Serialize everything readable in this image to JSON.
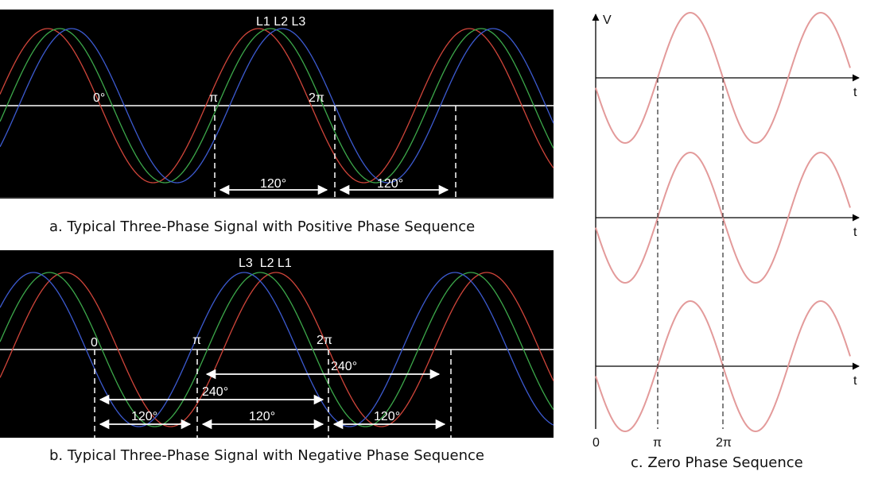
{
  "panel_a": {
    "phase_labels": "L1 L2 L3",
    "angle_labels": [
      "0°",
      "π",
      "2π"
    ],
    "gap_labels": [
      "120°",
      "120°"
    ],
    "caption": "a. Typical Three-Phase Signal with Positive Phase Sequence"
  },
  "panel_b": {
    "phase_labels": "L3  L2 L1",
    "angle_labels": [
      "0",
      "π",
      "2π"
    ],
    "gap_labels": [
      "240°",
      "240°",
      "120°",
      "120°",
      "120°"
    ],
    "caption": "b. Typical Three-Phase Signal with Negative Phase Sequence"
  },
  "panel_c": {
    "y_axis_label": "V",
    "time_labels": [
      "t",
      "t",
      "t"
    ],
    "tick_labels": [
      "0",
      "π",
      "2π"
    ],
    "caption": "c. Zero Phase Sequence"
  },
  "colors": {
    "background": "#000000",
    "L1": "#d0453a",
    "L2": "#3ca84a",
    "L3": "#3c5ad0",
    "zero_sequence": "#e39a9a"
  }
}
